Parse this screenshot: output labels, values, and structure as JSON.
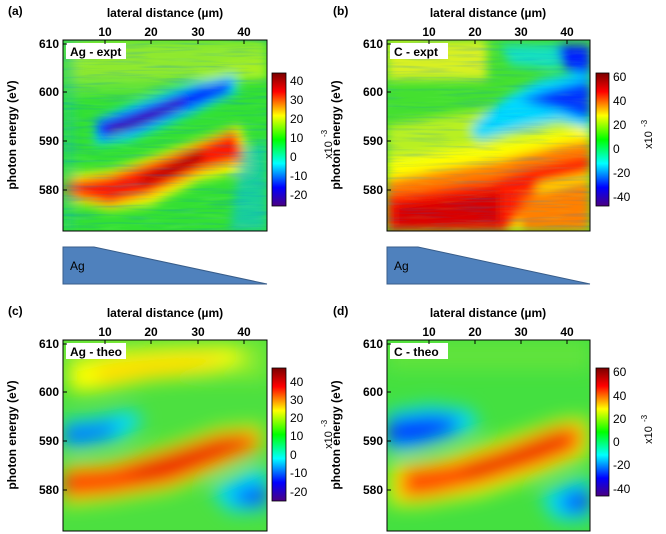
{
  "figure": {
    "panels": [
      {
        "id": "a",
        "panel_label": "(a)",
        "inset_label": "Ag - expt",
        "xlabel": "lateral distance (µm)",
        "ylabel": "photon energy (eV)",
        "x_ticks": [
          "10",
          "20",
          "30",
          "40"
        ],
        "y_ticks": [
          "610",
          "600",
          "590",
          "580"
        ],
        "colorbar_ticks": [
          "40",
          "30",
          "20",
          "10",
          "0",
          "-10",
          "-20"
        ],
        "colorbar_unit": "x10",
        "colorbar_exp": "-3",
        "wedge_label": "Ag"
      },
      {
        "id": "b",
        "panel_label": "(b)",
        "inset_label": "C - expt",
        "xlabel": "lateral distance (µm)",
        "ylabel": "photon energy (eV)",
        "x_ticks": [
          "10",
          "20",
          "30",
          "40"
        ],
        "y_ticks": [
          "610",
          "600",
          "590",
          "580"
        ],
        "colorbar_ticks": [
          "60",
          "40",
          "20",
          "0",
          "-20",
          "-40"
        ],
        "colorbar_unit": "x10",
        "colorbar_exp": "-3",
        "wedge_label": "Ag"
      },
      {
        "id": "c",
        "panel_label": "(c)",
        "inset_label": "Ag - theo",
        "xlabel": "lateral distance (µm)",
        "ylabel": "photon energy (eV)",
        "x_ticks": [
          "10",
          "20",
          "30",
          "40"
        ],
        "y_ticks": [
          "610",
          "600",
          "590",
          "580"
        ],
        "colorbar_ticks": [
          "40",
          "30",
          "20",
          "10",
          "0",
          "-10",
          "-20"
        ],
        "colorbar_unit": "x10",
        "colorbar_exp": "-3"
      },
      {
        "id": "d",
        "panel_label": "(d)",
        "inset_label": "C - theo",
        "xlabel": "lateral distance (µm)",
        "ylabel": "photon energy (eV)",
        "x_ticks": [
          "10",
          "20",
          "30",
          "40"
        ],
        "y_ticks": [
          "610",
          "600",
          "590",
          "580"
        ],
        "colorbar_ticks": [
          "60",
          "40",
          "20",
          "0",
          "-20",
          "-40"
        ],
        "colorbar_unit": "x10",
        "colorbar_exp": "-3"
      }
    ]
  },
  "colors": {
    "wedge_fill": "#4f81bd",
    "wedge_stroke": "#385d8a",
    "colormap": [
      "#4b0082",
      "#0000ff",
      "#00ffff",
      "#00ff00",
      "#ffff00",
      "#ff0000",
      "#7a0000"
    ]
  },
  "chart_data": [
    {
      "type": "heatmap",
      "panel": "(a)",
      "x": [
        10,
        20,
        30,
        40
      ],
      "y": [
        580,
        590,
        600,
        610
      ],
      "xlim": [
        3,
        47
      ],
      "ylim": [
        572,
        610
      ],
      "clim": [
        -22,
        45
      ],
      "features": [
        {
          "kind": "positive band",
          "from_x": 3,
          "from_y": 579,
          "to_x": 42,
          "to_y": 590,
          "peak_value": 40
        },
        {
          "kind": "negative band",
          "from_x": 3,
          "from_y": 588,
          "to_x": 37,
          "to_y": 598,
          "peak_value": -22
        }
      ]
    },
    {
      "type": "heatmap",
      "panel": "(b)",
      "x": [
        10,
        20,
        30,
        40
      ],
      "y": [
        580,
        590,
        600,
        610
      ],
      "xlim": [
        3,
        47
      ],
      "ylim": [
        572,
        610
      ],
      "clim": [
        -45,
        65
      ],
      "features": [
        {
          "kind": "positive region",
          "from_x": 3,
          "from_y": 576,
          "to_x": 47,
          "to_y": 589,
          "peak_value": 60
        },
        {
          "kind": "negative region",
          "from_x": 20,
          "from_y": 590,
          "to_x": 47,
          "to_y": 607,
          "peak_value": -45
        }
      ]
    },
    {
      "type": "heatmap",
      "panel": "(c)",
      "x": [
        10,
        20,
        30,
        40
      ],
      "y": [
        580,
        590,
        600,
        610
      ],
      "xlim": [
        3,
        47
      ],
      "ylim": [
        572,
        610
      ],
      "clim": [
        -22,
        45
      ],
      "features": [
        {
          "kind": "positive band",
          "from_x": 3,
          "from_y": 580,
          "to_x": 44,
          "to_y": 590,
          "peak_value": 40
        },
        {
          "kind": "negative band",
          "from_x": 3,
          "from_y": 591,
          "to_x": 22,
          "to_y": 596,
          "peak_value": -15
        },
        {
          "kind": "negative band",
          "from_x": 30,
          "from_y": 578,
          "to_x": 47,
          "to_y": 580,
          "peak_value": -22
        },
        {
          "kind": "positive band",
          "from_x": 5,
          "from_y": 603,
          "to_x": 35,
          "to_y": 609,
          "peak_value": 20
        }
      ]
    },
    {
      "type": "heatmap",
      "panel": "(d)",
      "x": [
        10,
        20,
        30,
        40
      ],
      "y": [
        580,
        590,
        600,
        610
      ],
      "xlim": [
        3,
        47
      ],
      "ylim": [
        572,
        610
      ],
      "clim": [
        -45,
        65
      ],
      "features": [
        {
          "kind": "positive band",
          "from_x": 5,
          "from_y": 580,
          "to_x": 44,
          "to_y": 591,
          "peak_value": 50
        },
        {
          "kind": "negative band",
          "from_x": 3,
          "from_y": 590,
          "to_x": 22,
          "to_y": 596,
          "peak_value": -40
        },
        {
          "kind": "negative band",
          "from_x": 32,
          "from_y": 578,
          "to_x": 47,
          "to_y": 581,
          "peak_value": -30
        }
      ]
    }
  ]
}
